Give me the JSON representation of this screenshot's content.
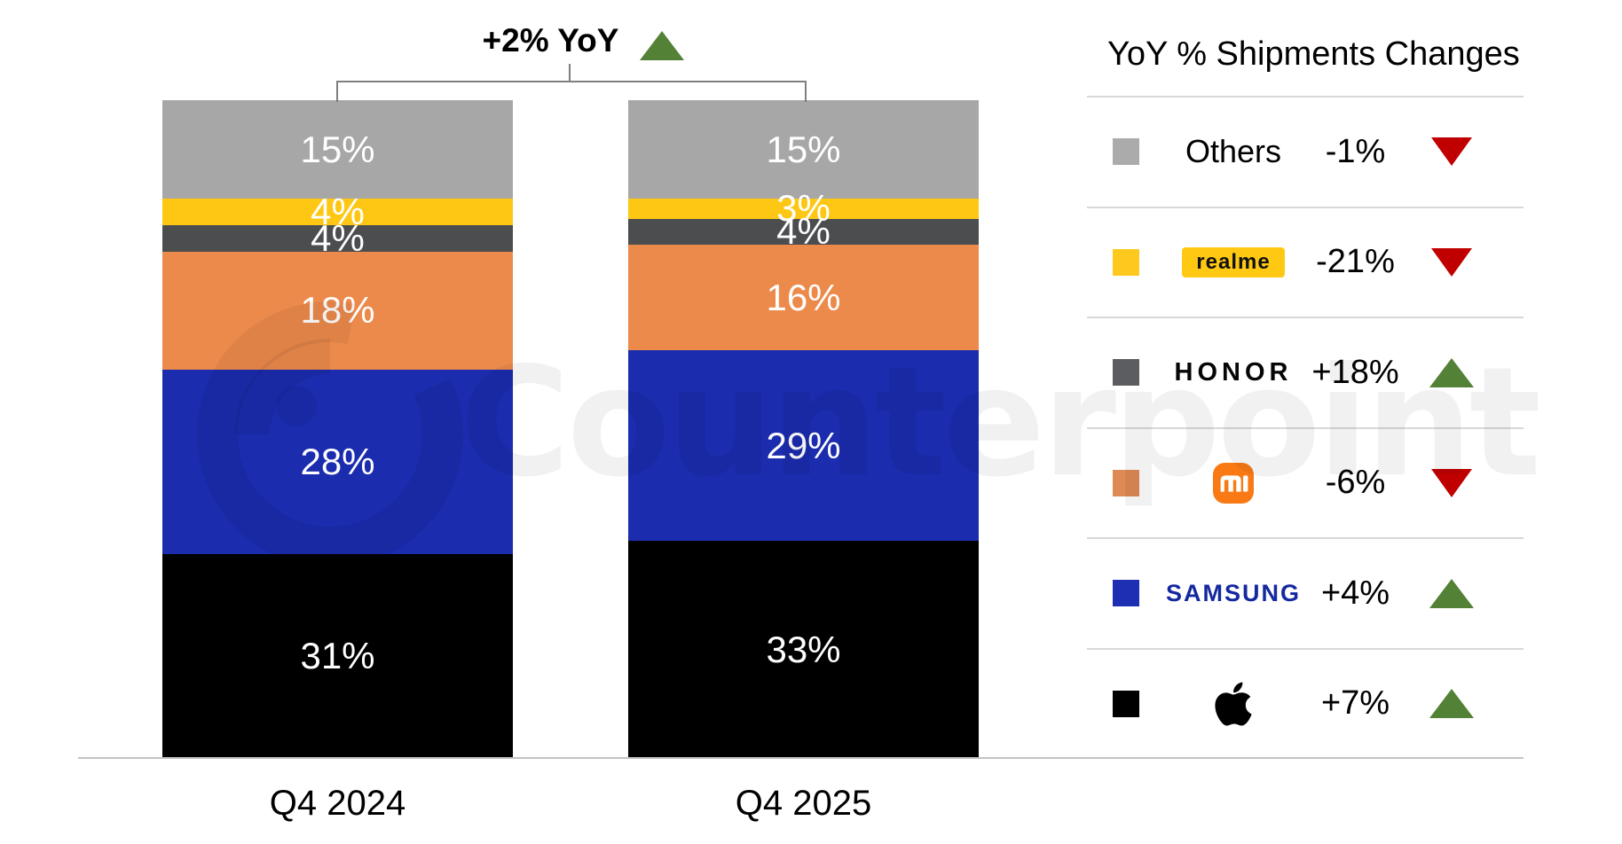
{
  "watermark": {
    "text": "Counterpoint"
  },
  "colors": {
    "positive": "#538135",
    "negative": "#C00000",
    "samsung_blue": "#1428A0",
    "mi_orange": "#F97A15",
    "realme_yellow": "#FFC913",
    "axis_line": "#C3C3C3",
    "separator": "#D8D8D8",
    "bracket": "#7F7F7F"
  },
  "chart_data": {
    "type": "bar",
    "stacked": true,
    "title": "+2% YoY",
    "title_change_direction": "up",
    "legend_title": "YoY % Shipments Changes",
    "legend_position": "right",
    "categories": [
      "Q4 2024",
      "Q4 2025"
    ],
    "value_suffix": "%",
    "ylim": [
      0,
      100
    ],
    "series": [
      {
        "name": "Others",
        "logo": "plain",
        "color": "#A7A7A7",
        "swatch_color": "#ABABAB",
        "values": [
          15,
          15
        ],
        "yoy": "-1%",
        "yoy_direction": "down"
      },
      {
        "name": "realme",
        "logo": "realme",
        "color": "#FDC713",
        "swatch_color": "#FEC91F",
        "values": [
          4,
          3
        ],
        "yoy": "-21%",
        "yoy_direction": "down"
      },
      {
        "name": "HONOR",
        "logo": "honor",
        "color": "#4B4D4F",
        "swatch_color": "#5B5D60",
        "values": [
          4,
          4
        ],
        "yoy": "+18%",
        "yoy_direction": "up"
      },
      {
        "name": "Xiaomi",
        "logo": "mi",
        "color": "#EC8A4C",
        "swatch_color": "#DE8A55",
        "values": [
          18,
          16
        ],
        "yoy": "-6%",
        "yoy_direction": "down"
      },
      {
        "name": "Samsung",
        "logo": "samsung",
        "color": "#1B2CAE",
        "swatch_color": "#1F2FB4",
        "values": [
          28,
          29
        ],
        "yoy": "+4%",
        "yoy_direction": "up"
      },
      {
        "name": "Apple",
        "logo": "apple",
        "color": "#000000",
        "swatch_color": "#000000",
        "values": [
          31,
          33
        ],
        "yoy": "+7%",
        "yoy_direction": "up"
      }
    ]
  }
}
